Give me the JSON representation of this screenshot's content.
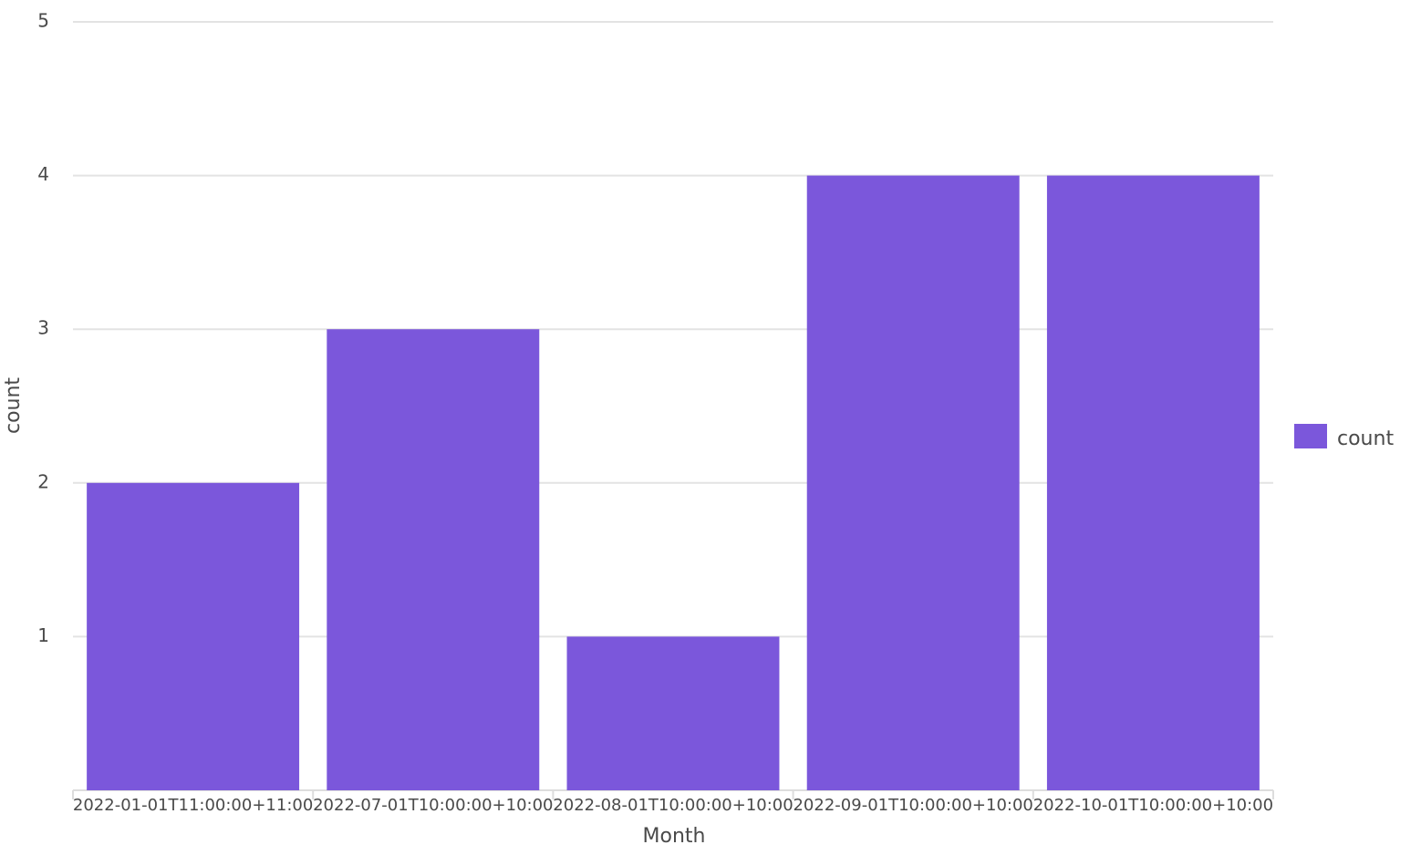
{
  "chart_data": {
    "type": "bar",
    "x_label": "Month",
    "y_label": "count",
    "categories": [
      "2022-01-01T11:00:00+11:00",
      "2022-07-01T10:00:00+10:00",
      "2022-08-01T10:00:00+10:00",
      "2022-09-01T10:00:00+10:00",
      "2022-10-01T10:00:00+10:00"
    ],
    "series": [
      {
        "name": "count",
        "color": "#7b57db",
        "values": [
          2,
          3,
          1,
          4,
          4
        ]
      }
    ],
    "ylim": [
      0,
      5
    ],
    "yticks": [
      1,
      2,
      3,
      4,
      5
    ],
    "grid": true,
    "legend": "right"
  }
}
